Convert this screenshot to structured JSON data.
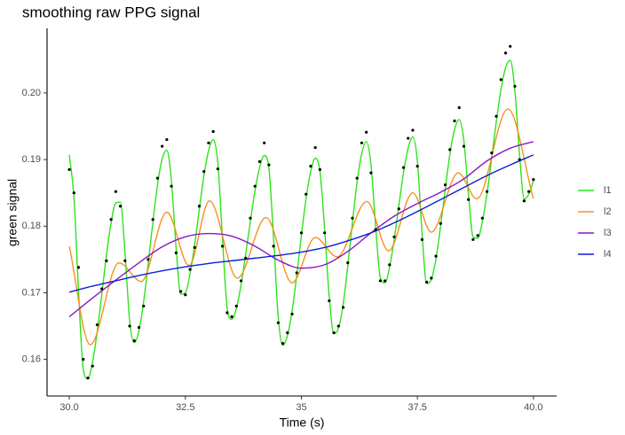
{
  "chart_data": {
    "type": "line",
    "title": "smoothing raw PPG signal",
    "x_label": "Time (s)",
    "y_label": "green signal",
    "x": [
      30,
      30.1,
      30.2,
      30.3,
      30.4,
      30.5,
      30.6,
      30.7,
      30.8,
      30.9,
      31,
      31.1,
      31.2,
      31.3,
      31.4,
      31.5,
      31.6,
      31.7,
      31.8,
      31.9,
      32,
      32.1,
      32.2,
      32.3,
      32.4,
      32.5,
      32.6,
      32.7,
      32.8,
      32.9,
      33,
      33.1,
      33.2,
      33.3,
      33.4,
      33.5,
      33.6,
      33.7,
      33.8,
      33.9,
      34,
      34.1,
      34.2,
      34.3,
      34.4,
      34.5,
      34.6,
      34.7,
      34.8,
      34.9,
      35,
      35.1,
      35.2,
      35.3,
      35.4,
      35.5,
      35.6,
      35.7,
      35.8,
      35.9,
      36,
      36.1,
      36.2,
      36.3,
      36.4,
      36.5,
      36.6,
      36.7,
      36.8,
      36.9,
      37,
      37.1,
      37.2,
      37.3,
      37.4,
      37.5,
      37.6,
      37.7,
      37.8,
      37.9,
      38,
      38.1,
      38.2,
      38.3,
      38.4,
      38.5,
      38.6,
      38.7,
      38.8,
      38.9,
      39,
      39.1,
      39.2,
      39.3,
      39.4,
      39.5,
      39.6,
      39.7,
      39.8,
      39.9,
      40
    ],
    "points": {
      "color": "#000000",
      "values": [
        0.1885,
        0.185,
        0.1738,
        0.16,
        0.1572,
        0.159,
        0.1652,
        0.1706,
        0.1748,
        0.181,
        0.1852,
        0.183,
        0.1748,
        0.165,
        0.1628,
        0.1648,
        0.168,
        0.175,
        0.181,
        0.1872,
        0.192,
        0.193,
        0.186,
        0.176,
        0.1702,
        0.1697,
        0.1735,
        0.1768,
        0.183,
        0.1882,
        0.1925,
        0.1942,
        0.1886,
        0.177,
        0.167,
        0.1664,
        0.168,
        0.1718,
        0.1752,
        0.1812,
        0.186,
        0.1897,
        0.1925,
        0.1892,
        0.177,
        0.1655,
        0.1624,
        0.164,
        0.1668,
        0.173,
        0.179,
        0.1848,
        0.189,
        0.1918,
        0.1885,
        0.179,
        0.1688,
        0.164,
        0.165,
        0.1678,
        0.1745,
        0.1812,
        0.1872,
        0.1925,
        0.1941,
        0.188,
        0.1795,
        0.1718,
        0.1718,
        0.1742,
        0.1784,
        0.1826,
        0.1888,
        0.1932,
        0.1944,
        0.189,
        0.178,
        0.1716,
        0.1722,
        0.1755,
        0.1804,
        0.1862,
        0.1915,
        0.1958,
        0.1978,
        0.192,
        0.184,
        0.178,
        0.1786,
        0.1812,
        0.1852,
        0.191,
        0.1965,
        0.202,
        0.206,
        0.207,
        0.201,
        0.19,
        0.1838,
        0.1852,
        0.187
      ]
    },
    "series": [
      {
        "name": "l1",
        "color": "#2de31a",
        "values": [
          0.1907,
          0.1843,
          0.17,
          0.1585,
          0.1571,
          0.1596,
          0.1641,
          0.1698,
          0.1757,
          0.1805,
          0.1835,
          0.1836,
          0.176,
          0.1658,
          0.1625,
          0.1643,
          0.1686,
          0.1744,
          0.1806,
          0.1862,
          0.1901,
          0.1914,
          0.1868,
          0.1768,
          0.1698,
          0.17,
          0.1728,
          0.1772,
          0.1825,
          0.1876,
          0.1913,
          0.193,
          0.1895,
          0.1781,
          0.1678,
          0.166,
          0.1677,
          0.1712,
          0.1758,
          0.1807,
          0.1853,
          0.1888,
          0.1906,
          0.1887,
          0.1783,
          0.1665,
          0.1621,
          0.1636,
          0.1673,
          0.1726,
          0.1786,
          0.1841,
          0.1882,
          0.1902,
          0.1882,
          0.1797,
          0.1694,
          0.1639,
          0.1647,
          0.1683,
          0.174,
          0.1805,
          0.1866,
          0.1909,
          0.1927,
          0.1892,
          0.18,
          0.1723,
          0.1715,
          0.1738,
          0.178,
          0.1831,
          0.188,
          0.1917,
          0.1934,
          0.1897,
          0.1789,
          0.1714,
          0.172,
          0.1751,
          0.18,
          0.1856,
          0.1908,
          0.1945,
          0.196,
          0.1929,
          0.1848,
          0.1784,
          0.1782,
          0.1807,
          0.1849,
          0.1902,
          0.1957,
          0.2005,
          0.2038,
          0.2049,
          0.2004,
          0.1908,
          0.1841,
          0.1848,
          0.1868
        ]
      },
      {
        "name": "l2",
        "color": "#f7901e",
        "x": [
          30,
          30.45,
          31.07,
          31.55,
          32.1,
          32.58,
          33.02,
          33.62,
          34.24,
          34.8,
          35.3,
          35.77,
          36.41,
          36.88,
          37.4,
          37.8,
          38.38,
          38.78,
          39.45,
          40
        ],
        "values": [
          0.177,
          0.1622,
          0.1745,
          0.1717,
          0.1821,
          0.1741,
          0.1838,
          0.1722,
          0.1813,
          0.1715,
          0.1783,
          0.1754,
          0.1837,
          0.1763,
          0.185,
          0.1791,
          0.188,
          0.1841,
          0.1976,
          0.1841
        ]
      },
      {
        "name": "l3",
        "color": "#8a17c7",
        "x": [
          30,
          30.5,
          31,
          31.5,
          32,
          32.5,
          33,
          33.5,
          34,
          34.5,
          35,
          35.5,
          36,
          36.5,
          37,
          37.5,
          38,
          38.5,
          39,
          39.5,
          40
        ],
        "values": [
          0.1664,
          0.1692,
          0.1719,
          0.1745,
          0.1769,
          0.1784,
          0.1789,
          0.1785,
          0.177,
          0.1749,
          0.1737,
          0.1742,
          0.1762,
          0.179,
          0.1815,
          0.1834,
          0.1851,
          0.1871,
          0.1898,
          0.1917,
          0.1927
        ]
      },
      {
        "name": "l4",
        "color": "#0b1fd9",
        "x": [
          30,
          30.5,
          31,
          31.5,
          32,
          32.5,
          33,
          33.5,
          34,
          34.5,
          35,
          35.5,
          36,
          36.5,
          37,
          37.5,
          38,
          38.5,
          39,
          39.5,
          40
        ],
        "values": [
          0.1701,
          0.171,
          0.1718,
          0.1726,
          0.1733,
          0.1739,
          0.1744,
          0.1748,
          0.1752,
          0.1756,
          0.1761,
          0.1768,
          0.1778,
          0.179,
          0.1805,
          0.1822,
          0.184,
          0.1858,
          0.1876,
          0.1892,
          0.1907
        ]
      }
    ],
    "xlim": [
      29.52,
      40.5
    ],
    "ylim": [
      0.1545,
      0.2097
    ],
    "xticks": [
      {
        "value": 30,
        "label": "30.0"
      },
      32.5,
      35,
      37.5,
      {
        "value": 40,
        "label": "40.0"
      }
    ],
    "yticks": [
      0.16,
      0.17,
      0.18,
      0.19,
      {
        "value": 0.2,
        "label": "0.20"
      }
    ],
    "grid": false,
    "legend": "right"
  }
}
